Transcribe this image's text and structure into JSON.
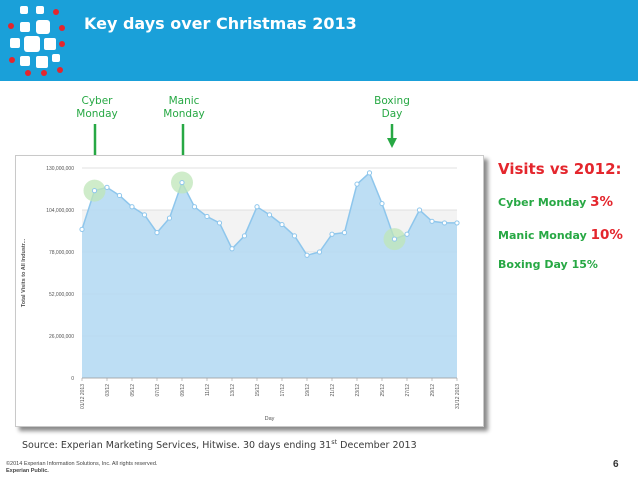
{
  "header": {
    "title": "Key days over Christmas 2013",
    "bg_color": "#1aa0d9"
  },
  "callouts": [
    {
      "line1": "Cyber",
      "line2": "Monday"
    },
    {
      "line1": "Manic",
      "line2": "Monday"
    },
    {
      "line1": "Boxing",
      "line2": "Day"
    }
  ],
  "side_panel": {
    "heading": "Visits vs 2012:",
    "items": [
      {
        "label": "Cyber Monday",
        "value": "3%"
      },
      {
        "label": "Manic Monday",
        "value": "10%"
      },
      {
        "label": "Boxing Day",
        "value": "15%"
      }
    ]
  },
  "footer": {
    "source_main": "Source: Experian Marketing Services, Hitwise. 30 days ending 31",
    "source_sup": "st",
    "source_tail": " December 2013",
    "copyright": "©2014 Experian Information Solutions, Inc. All rights reserved.",
    "classification": "Experian Public.",
    "page_number": "6"
  },
  "colors": {
    "accent_green": "#27a844",
    "accent_red": "#e4262d",
    "area_fill": "#b6daf3",
    "line": "#8ec6ec"
  },
  "chart_data": {
    "type": "area",
    "xlabel": "Day",
    "ylabel": "Total Visits to All Industr...",
    "ylim": [
      0,
      130000000
    ],
    "yticks": [
      0,
      26000000,
      52000000,
      78000000,
      104000000,
      130000000
    ],
    "ytick_labels": [
      "0",
      "26,000,000",
      "52,000,000",
      "78,000,000",
      "104,000,000",
      "130,000,000"
    ],
    "x": [
      "01/12 2013",
      "02/12",
      "03/12",
      "04/12",
      "05/12",
      "06/12",
      "07/12",
      "08/12",
      "09/12",
      "10/12",
      "11/12",
      "12/12",
      "13/12",
      "14/12",
      "15/12",
      "16/12",
      "17/12",
      "18/12",
      "19/12",
      "20/12",
      "21/12",
      "22/12",
      "23/12",
      "24/12",
      "25/12",
      "26/12",
      "27/12",
      "28/12",
      "29/12",
      "30/12",
      "31/12 2013"
    ],
    "xtick_labels": [
      "01/12 2013",
      "03/12",
      "05/12",
      "07/12",
      "09/12",
      "11/12",
      "13/12",
      "15/12",
      "17/12",
      "19/12",
      "21/12",
      "23/12",
      "25/12",
      "27/12",
      "29/12",
      "31/12 2013"
    ],
    "series": [
      {
        "values": [
          92000000,
          116000000,
          118000000,
          113000000,
          106000000,
          101000000,
          90000000,
          99000000,
          121000000,
          106000000,
          100000000,
          96000000,
          80000000,
          88000000,
          106000000,
          101000000,
          95000000,
          88000000,
          76000000,
          78000000,
          89000000,
          90000000,
          120000000,
          127000000,
          108000000,
          86000000,
          89000000,
          104000000,
          97000000,
          96000000,
          96000000
        ]
      }
    ],
    "highlighted": [
      "02/12",
      "09/12",
      "26/12"
    ],
    "grid": true,
    "legend": "none"
  }
}
